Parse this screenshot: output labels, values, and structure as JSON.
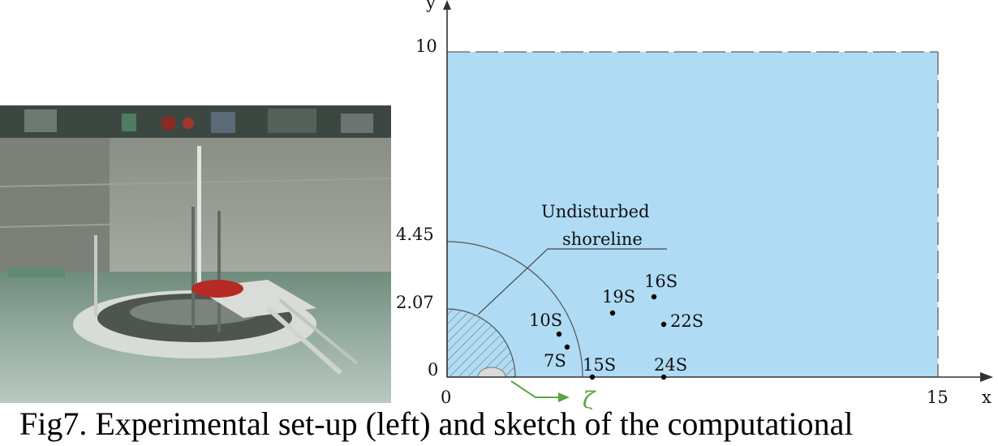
{
  "figure": {
    "caption": "Fig7. Experimental set-up (left) and sketch of the computational",
    "photo_description_alt": "Experimental set-up"
  },
  "sketch": {
    "axis_x_label": "x",
    "axis_y_label": "y",
    "tick_labels": {
      "x_0": "0",
      "x_15": "15",
      "y_0": "0",
      "y_207": "2.07",
      "y_445": "4.45",
      "y_10": "10"
    },
    "shoreline_label_line1": "Undisturbed",
    "shoreline_label_line2": "shoreline",
    "zeta_symbol": "ζ",
    "gauges": [
      {
        "id": "7S",
        "x": 3.8,
        "y": 0.95
      },
      {
        "id": "10S",
        "x": 3.6,
        "y": 1.35
      },
      {
        "id": "15S",
        "x": 4.7,
        "y": 0.0
      },
      {
        "id": "16S",
        "x": 7.1,
        "y": 2.6
      },
      {
        "id": "19S",
        "x": 5.6,
        "y": 2.1
      },
      {
        "id": "22S",
        "x": 7.5,
        "y": 1.75
      },
      {
        "id": "24S",
        "x": 7.5,
        "y": 0.0
      }
    ],
    "colors": {
      "water": "#afdbf5",
      "island_hatch": "#666666",
      "arrow": "#5aa446"
    }
  }
}
